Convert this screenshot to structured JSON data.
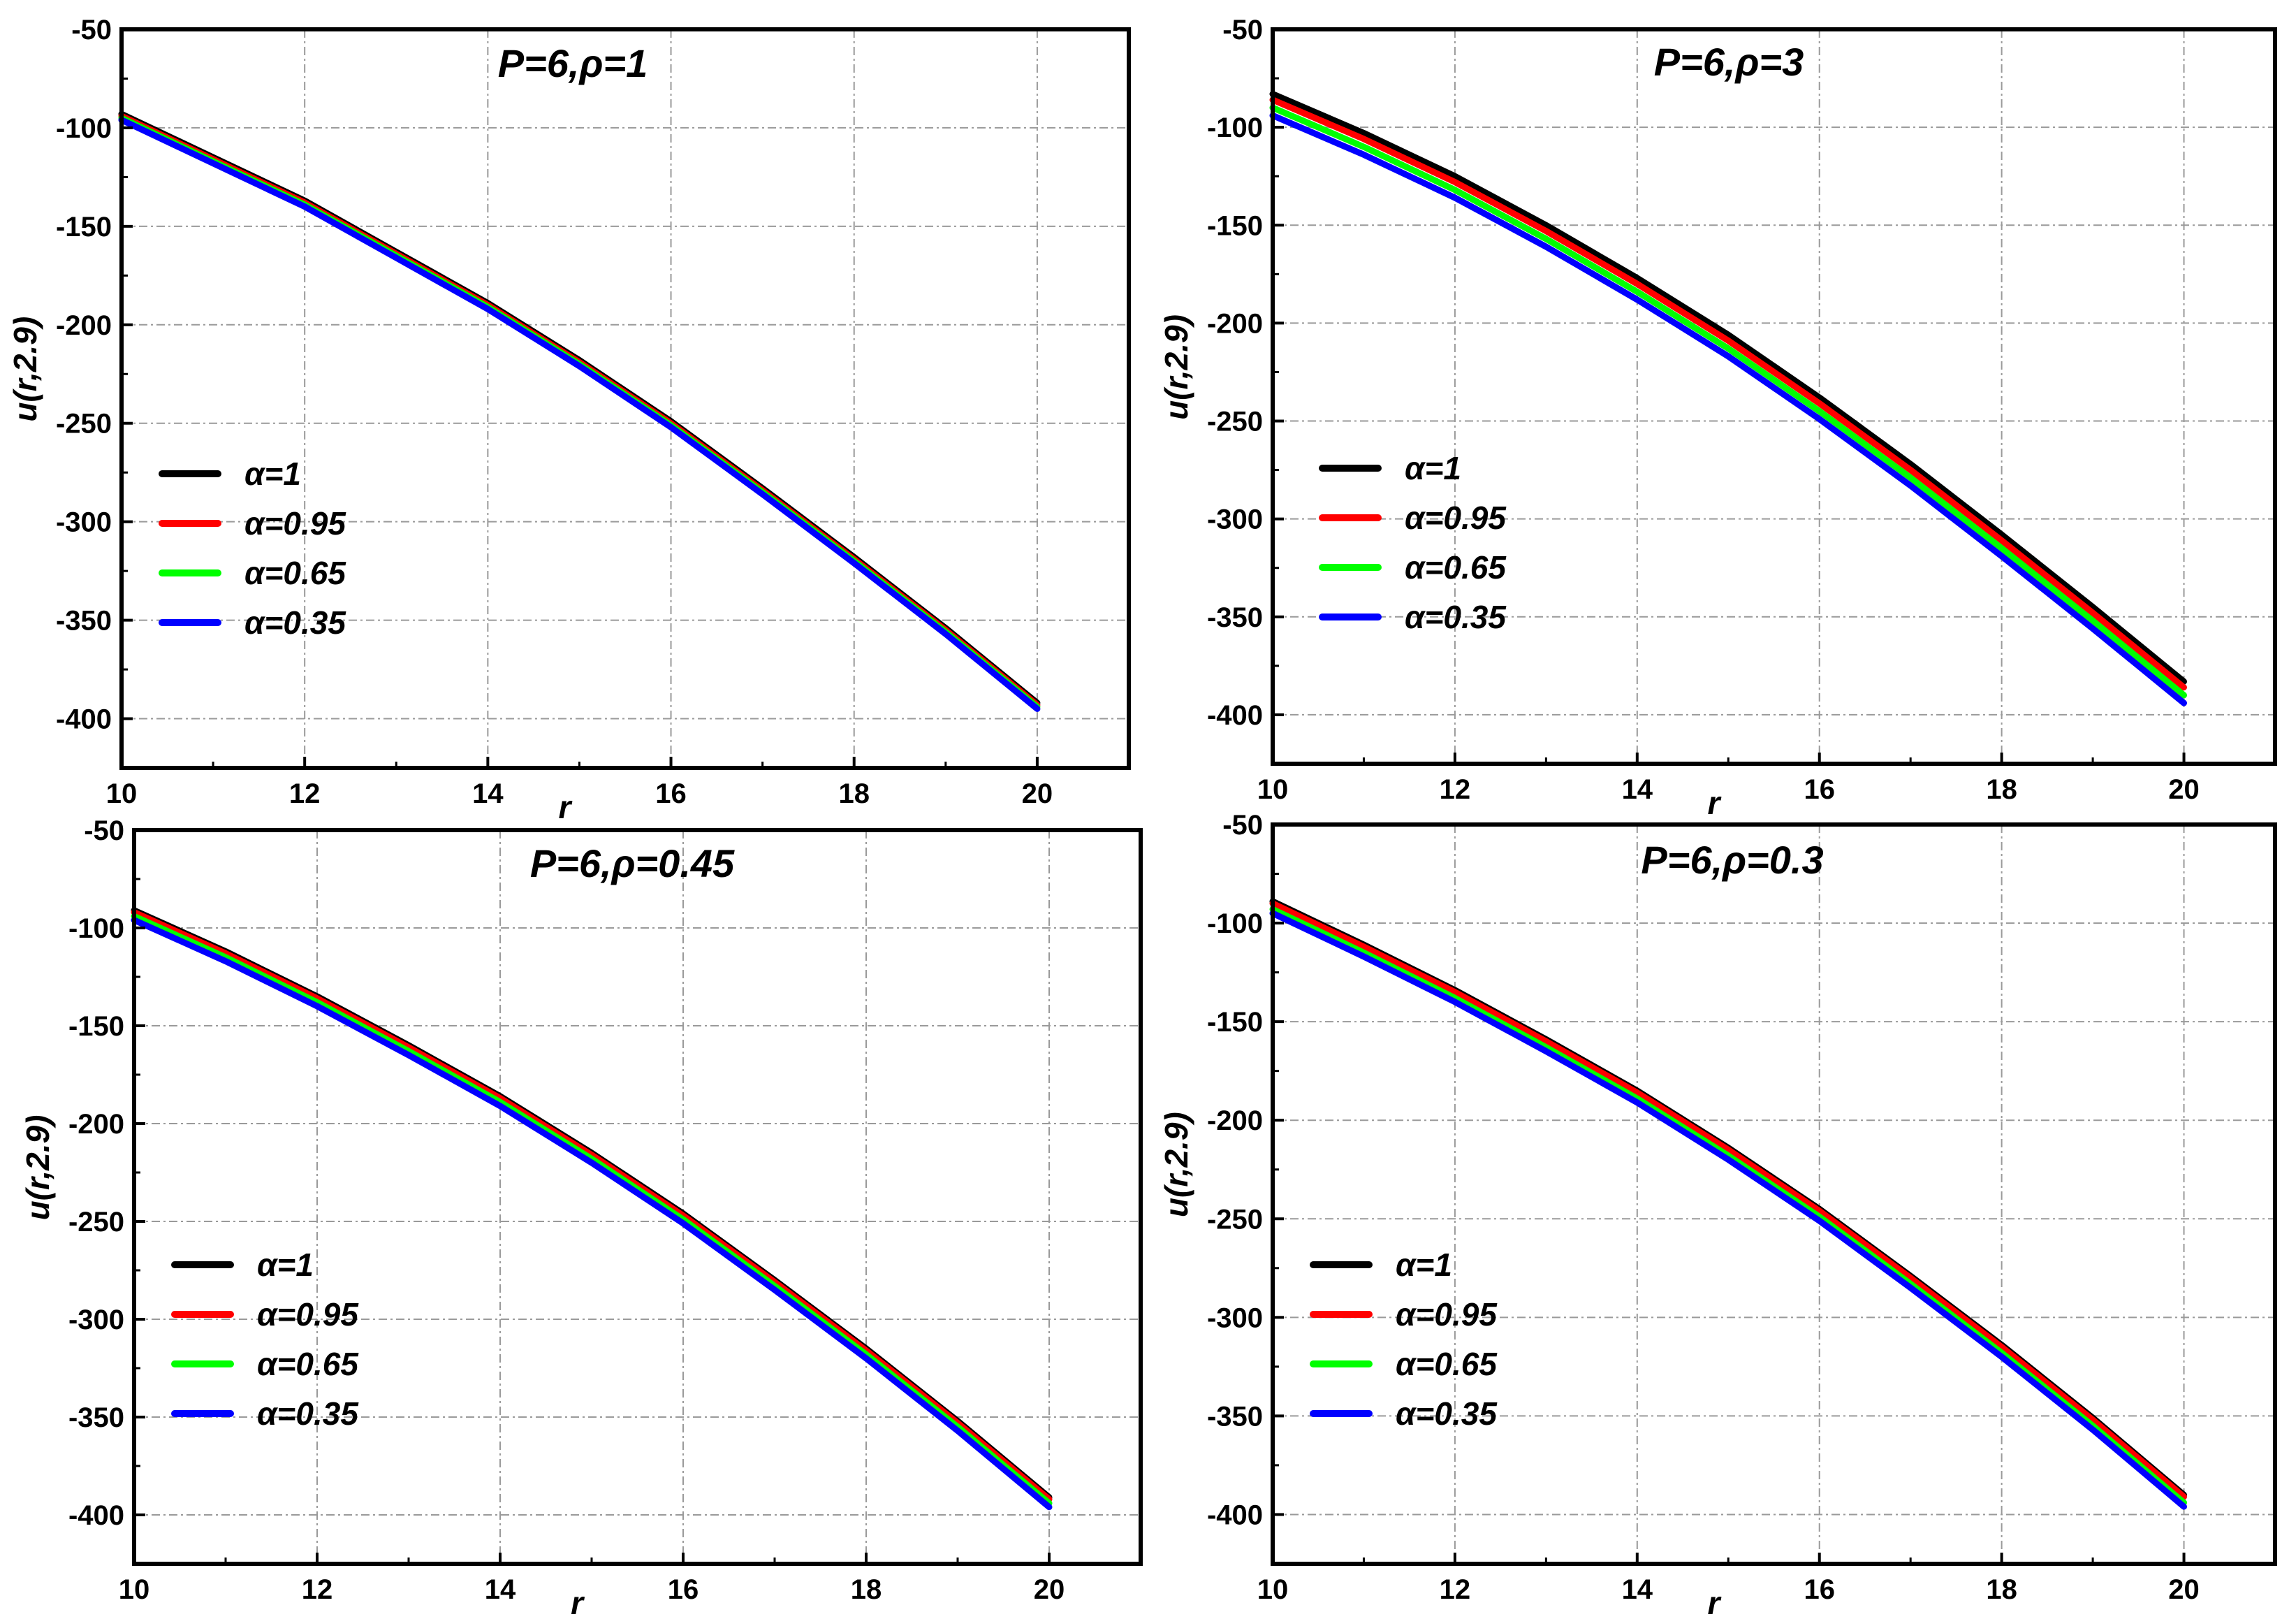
{
  "figure_title": "",
  "chart_data": [
    {
      "type": "line",
      "title": "P=6,ρ=1",
      "xlabel": "r",
      "ylabel": "u(r,2.9)",
      "xlim": [
        10,
        21
      ],
      "ylim": [
        -425,
        -50
      ],
      "xticks": [
        10,
        12,
        14,
        16,
        18,
        20
      ],
      "yticks": [
        -50,
        -100,
        -150,
        -200,
        -250,
        -300,
        -350,
        -400
      ],
      "grid": true,
      "legend_position": "middle-left",
      "x": [
        10,
        11,
        12,
        13,
        14,
        15,
        16,
        17,
        18,
        19,
        20
      ],
      "series": [
        {
          "name": "α=1",
          "color": "#000000",
          "values": [
            -93,
            -115,
            -137,
            -163,
            -189,
            -218,
            -249,
            -283,
            -318,
            -354,
            -392
          ]
        },
        {
          "name": "α=0.95",
          "color": "#ff0000",
          "values": [
            -94,
            -116,
            -138,
            -164,
            -190,
            -219,
            -250,
            -284,
            -319,
            -355,
            -393
          ]
        },
        {
          "name": "α=0.65",
          "color": "#00ff00",
          "values": [
            -95,
            -117,
            -139,
            -165,
            -191,
            -220,
            -251,
            -285,
            -320,
            -356,
            -394
          ]
        },
        {
          "name": "α=0.35",
          "color": "#0000ff",
          "values": [
            -96,
            -118,
            -140,
            -166,
            -192,
            -221,
            -252,
            -286,
            -321,
            -357,
            -395
          ]
        }
      ]
    },
    {
      "type": "line",
      "title": "P=6,ρ=3",
      "xlabel": "r",
      "ylabel": "u(r,2.9)",
      "xlim": [
        10,
        21
      ],
      "ylim": [
        -425,
        -50
      ],
      "xticks": [
        10,
        12,
        14,
        16,
        18,
        20
      ],
      "yticks": [
        -50,
        -100,
        -150,
        -200,
        -250,
        -300,
        -350,
        -400
      ],
      "grid": true,
      "legend_position": "middle-left",
      "x": [
        10,
        11,
        12,
        13,
        14,
        15,
        16,
        17,
        18,
        19,
        20
      ],
      "series": [
        {
          "name": "α=1",
          "color": "#000000",
          "values": [
            -83,
            -103,
            -125,
            -150,
            -177,
            -206,
            -238,
            -272,
            -308,
            -345,
            -383
          ]
        },
        {
          "name": "α=0.95",
          "color": "#ff0000",
          "values": [
            -86,
            -106,
            -128,
            -153,
            -180,
            -209,
            -241,
            -275,
            -311,
            -348,
            -386
          ]
        },
        {
          "name": "α=0.65",
          "color": "#00ff00",
          "values": [
            -90,
            -110,
            -132,
            -157,
            -184,
            -213,
            -245,
            -279,
            -315,
            -352,
            -390
          ]
        },
        {
          "name": "α=0.35",
          "color": "#0000ff",
          "values": [
            -94,
            -114,
            -136,
            -161,
            -188,
            -217,
            -249,
            -283,
            -319,
            -356,
            -394
          ]
        }
      ]
    },
    {
      "type": "line",
      "title": "P=6,ρ=0.45",
      "xlabel": "r",
      "ylabel": "u(r,2.9)",
      "xlim": [
        10,
        21
      ],
      "ylim": [
        -425,
        -50
      ],
      "xticks": [
        10,
        12,
        14,
        16,
        18,
        20
      ],
      "yticks": [
        -50,
        -100,
        -150,
        -200,
        -250,
        -300,
        -350,
        -400
      ],
      "grid": true,
      "legend_position": "middle-left",
      "x": [
        10,
        11,
        12,
        13,
        14,
        15,
        16,
        17,
        18,
        19,
        20
      ],
      "series": [
        {
          "name": "α=1",
          "color": "#000000",
          "values": [
            -91,
            -112,
            -135,
            -160,
            -186,
            -215,
            -246,
            -280,
            -315,
            -352,
            -391
          ]
        },
        {
          "name": "α=0.95",
          "color": "#ff0000",
          "values": [
            -92,
            -113,
            -136,
            -161,
            -187,
            -216,
            -247,
            -281,
            -316,
            -353,
            -392
          ]
        },
        {
          "name": "α=0.65",
          "color": "#00ff00",
          "values": [
            -94,
            -115,
            -138,
            -163,
            -189,
            -218,
            -249,
            -283,
            -318,
            -355,
            -394
          ]
        },
        {
          "name": "α=0.35",
          "color": "#0000ff",
          "values": [
            -96,
            -117,
            -140,
            -165,
            -191,
            -220,
            -251,
            -285,
            -320,
            -357,
            -396
          ]
        }
      ]
    },
    {
      "type": "line",
      "title": "P=6,ρ=0.3",
      "xlabel": "r",
      "ylabel": "u(r,2.9)",
      "xlim": [
        10,
        21
      ],
      "ylim": [
        -425,
        -50
      ],
      "xticks": [
        10,
        12,
        14,
        16,
        18,
        20
      ],
      "yticks": [
        -50,
        -100,
        -150,
        -200,
        -250,
        -300,
        -350,
        -400
      ],
      "grid": true,
      "legend_position": "middle-left",
      "x": [
        10,
        11,
        12,
        13,
        14,
        15,
        16,
        17,
        18,
        19,
        20
      ],
      "series": [
        {
          "name": "α=1",
          "color": "#000000",
          "values": [
            -89,
            -111,
            -134,
            -159,
            -185,
            -214,
            -245,
            -279,
            -314,
            -351,
            -390
          ]
        },
        {
          "name": "α=0.95",
          "color": "#ff0000",
          "values": [
            -90,
            -112,
            -135,
            -160,
            -186,
            -215,
            -246,
            -280,
            -315,
            -352,
            -391
          ]
        },
        {
          "name": "α=0.65",
          "color": "#00ff00",
          "values": [
            -93,
            -115,
            -138,
            -163,
            -189,
            -218,
            -249,
            -283,
            -318,
            -355,
            -394
          ]
        },
        {
          "name": "α=0.35",
          "color": "#0000ff",
          "values": [
            -95,
            -117,
            -140,
            -165,
            -191,
            -220,
            -251,
            -285,
            -320,
            -357,
            -396
          ]
        }
      ]
    }
  ]
}
